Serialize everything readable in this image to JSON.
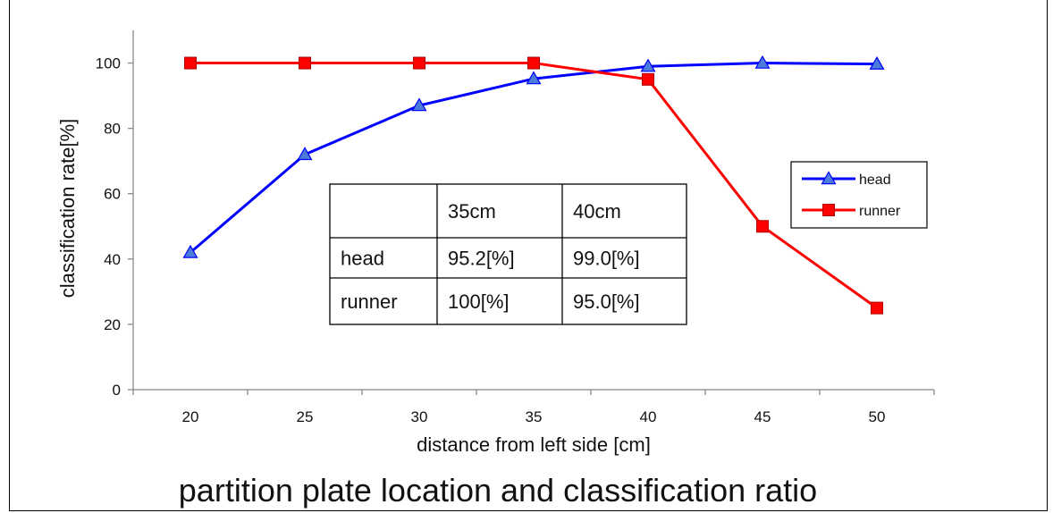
{
  "chart_data": {
    "type": "line",
    "xlabel": "distance from left side [cm]",
    "ylabel": "classification rate[%]",
    "caption": "partition plate location and classification ratio",
    "x": [
      20,
      25,
      30,
      35,
      40,
      45,
      50
    ],
    "xticks": [
      "20",
      "25",
      "30",
      "35",
      "40",
      "45",
      "50"
    ],
    "yticks": [
      "0",
      "20",
      "40",
      "60",
      "80",
      "100"
    ],
    "ylim": [
      0,
      110
    ],
    "grid": false,
    "legend_position": "right",
    "series": [
      {
        "name": "head",
        "color": "#0000ff",
        "marker": "triangle",
        "values": [
          42,
          72,
          87,
          95.2,
          99.0,
          100,
          99.7
        ]
      },
      {
        "name": "runner",
        "color": "#ff0000",
        "marker": "square",
        "values": [
          100,
          100,
          100,
          100,
          95.0,
          50,
          25
        ]
      }
    ],
    "table": {
      "header": [
        "",
        "35cm",
        "40cm"
      ],
      "rows": [
        [
          "head",
          "95.2[%]",
          "99.0[%]"
        ],
        [
          "runner",
          "100[%]",
          "95.0[%]"
        ]
      ]
    }
  }
}
